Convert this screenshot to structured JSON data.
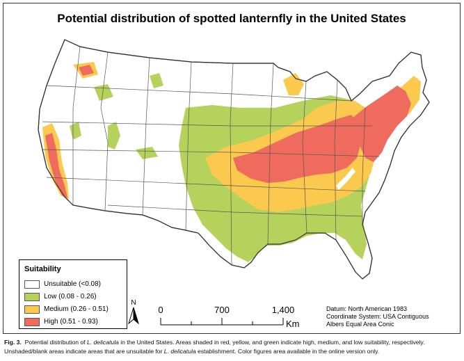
{
  "title": "Potential distribution of spotted lanternfly in the United States",
  "legend": {
    "title": "Suitability",
    "items": [
      {
        "label": "Unsuitable (<0.08)",
        "color": "#ffffff"
      },
      {
        "label": "Low (0.08 - 0.26)",
        "color": "#b5d35c"
      },
      {
        "label": "Medium (0.26 - 0.51)",
        "color": "#fbc94e"
      },
      {
        "label": "High (0.51 - 0.93)",
        "color": "#ef6b5e"
      }
    ]
  },
  "north_arrow": {
    "label": "N"
  },
  "scale_bar": {
    "ticks": [
      "0",
      "700",
      "1,400"
    ],
    "unit": "Km"
  },
  "datum": [
    "Datum: North American 1983",
    "Coordinate System: USA Contiguous",
    "Albers Equal Area Conic"
  ],
  "caption": {
    "fig_label": "Fig. 3.",
    "line1_pre": "Potential distribution of ",
    "species": "L. delicatula",
    "line1_post": " in the United States. Areas shaded in red, yellow, and green indicate high, medium, and low suitability, respectively.",
    "line2_pre": "Unshaded/blank areas indicate areas that are unsuitable for ",
    "line2_post": " establishment. Color figures area available in the online version only."
  },
  "colors": {
    "unsuitable": "#ffffff",
    "low": "#b5d35c",
    "medium": "#fbc94e",
    "high": "#ef6b5e",
    "state_border": "#555555"
  }
}
